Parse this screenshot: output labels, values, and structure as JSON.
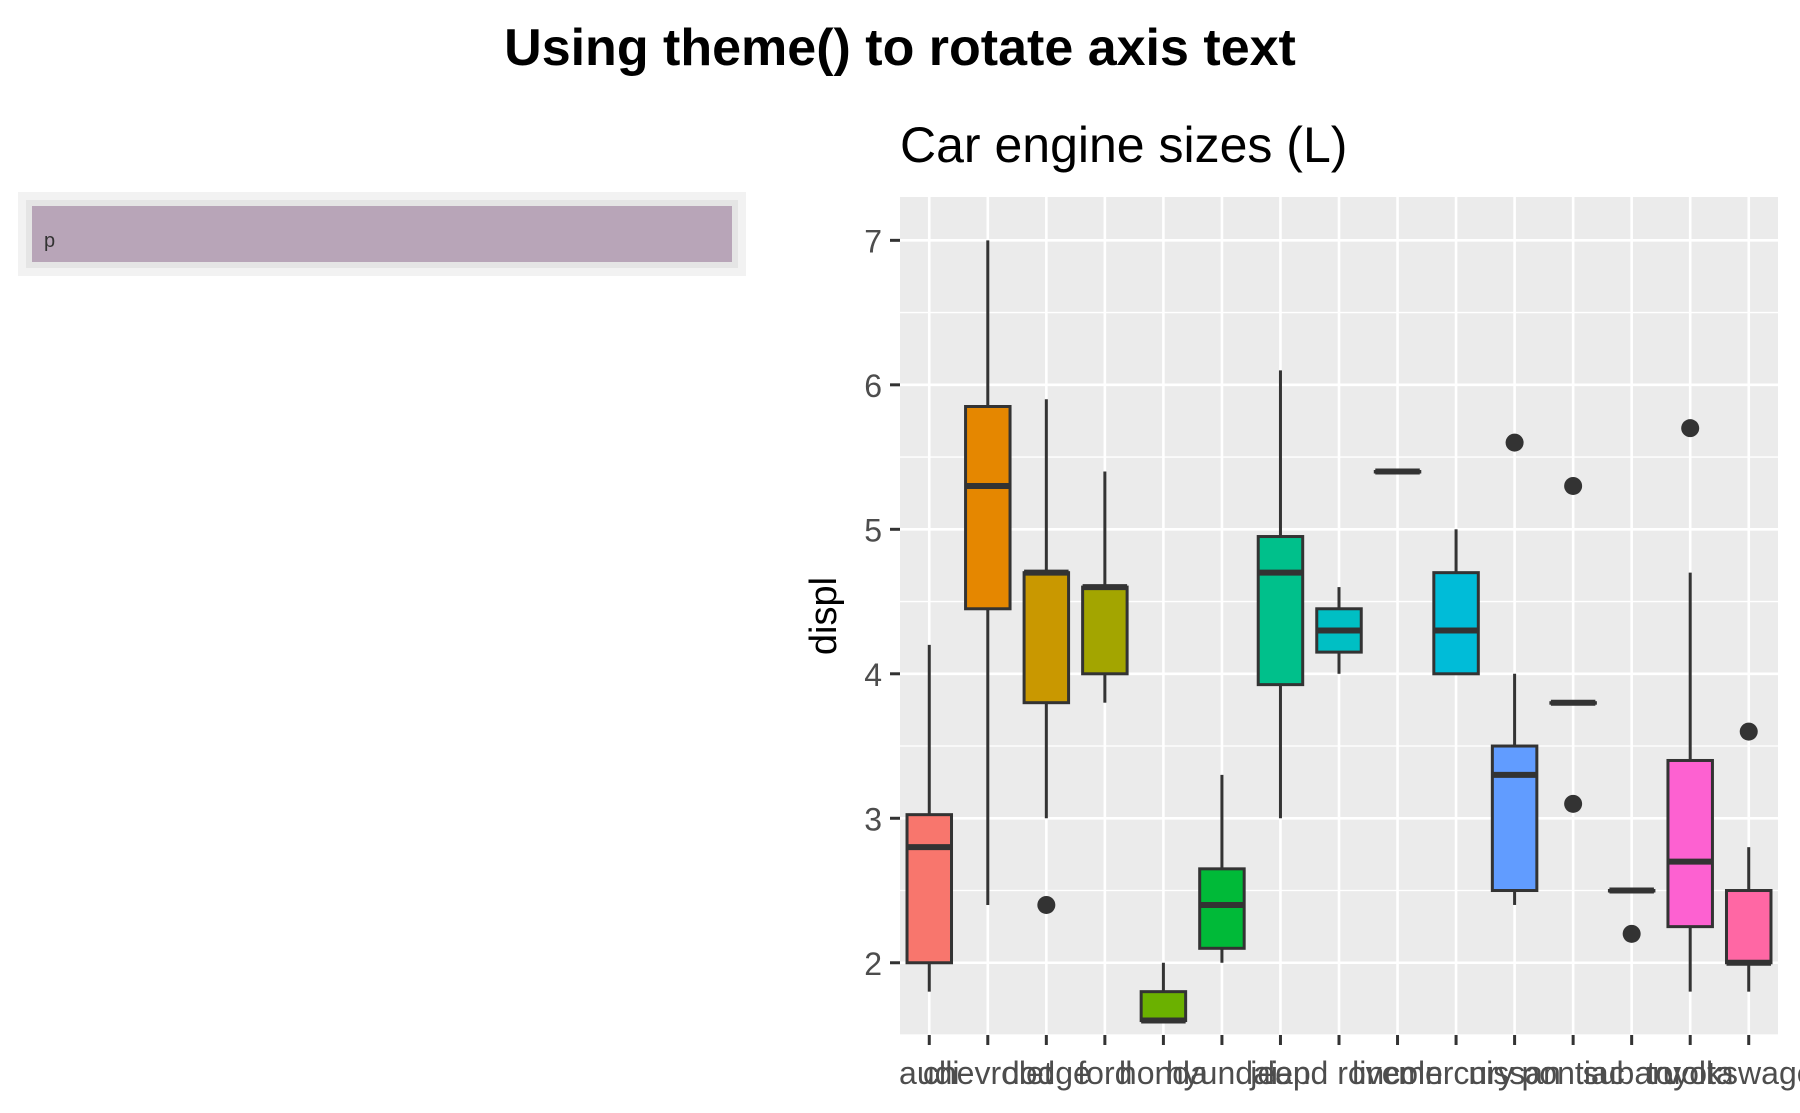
{
  "page_title": "Using theme() to rotate axis text",
  "left_panel": {
    "label": "p",
    "fill": "#b8a5b8"
  },
  "chart_data": {
    "type": "box",
    "title": "Car engine sizes (L)",
    "xlabel": "",
    "ylabel": "displ",
    "ylim": [
      1.5,
      7.3
    ],
    "yticks": [
      2,
      3,
      4,
      5,
      6,
      7
    ],
    "grid": true,
    "legend": "none",
    "categories": [
      "audi",
      "chevrolet",
      "dodge",
      "ford",
      "honda",
      "hyundai",
      "jeep",
      "land rover",
      "lincoln",
      "mercury",
      "nissan",
      "pontiac",
      "subaru",
      "toyota",
      "volkswagen"
    ],
    "colors": [
      "#F8766D",
      "#E58700",
      "#C99800",
      "#A3A500",
      "#6BB100",
      "#00BA38",
      "#00C08B",
      "#00BFC4",
      "#00B0F6",
      "#00BCD8",
      "#619CFF",
      "#B983FF",
      "#E76BF3",
      "#FD61D1",
      "#FF67A4"
    ],
    "boxes": [
      {
        "lower_whisker": 1.8,
        "q1": 2.0,
        "median": 2.8,
        "q3": 3.025,
        "upper_whisker": 4.2,
        "outliers": []
      },
      {
        "lower_whisker": 2.4,
        "q1": 4.45,
        "median": 5.3,
        "q3": 5.85,
        "upper_whisker": 7.0,
        "outliers": []
      },
      {
        "lower_whisker": 3.0,
        "q1": 3.8,
        "median": 4.7,
        "q3": 4.7,
        "upper_whisker": 5.9,
        "outliers": [
          2.4
        ]
      },
      {
        "lower_whisker": 3.8,
        "q1": 4.0,
        "median": 4.6,
        "q3": 4.6,
        "upper_whisker": 5.4,
        "outliers": []
      },
      {
        "lower_whisker": 1.6,
        "q1": 1.6,
        "median": 1.6,
        "q3": 1.8,
        "upper_whisker": 2.0,
        "outliers": []
      },
      {
        "lower_whisker": 2.0,
        "q1": 2.1,
        "median": 2.4,
        "q3": 2.65,
        "upper_whisker": 3.3,
        "outliers": []
      },
      {
        "lower_whisker": 3.0,
        "q1": 3.925,
        "median": 4.7,
        "q3": 4.95,
        "upper_whisker": 6.1,
        "outliers": []
      },
      {
        "lower_whisker": 4.0,
        "q1": 4.15,
        "median": 4.3,
        "q3": 4.45,
        "upper_whisker": 4.6,
        "outliers": []
      },
      {
        "lower_whisker": 5.4,
        "q1": 5.4,
        "median": 5.4,
        "q3": 5.4,
        "upper_whisker": 5.4,
        "outliers": []
      },
      {
        "lower_whisker": 4.0,
        "q1": 4.0,
        "median": 4.3,
        "q3": 4.7,
        "upper_whisker": 5.0,
        "outliers": []
      },
      {
        "lower_whisker": 2.4,
        "q1": 2.5,
        "median": 3.3,
        "q3": 3.5,
        "upper_whisker": 4.0,
        "outliers": [
          5.6
        ]
      },
      {
        "lower_whisker": 3.8,
        "q1": 3.8,
        "median": 3.8,
        "q3": 3.8,
        "upper_whisker": 3.8,
        "outliers": [
          3.1,
          5.3
        ]
      },
      {
        "lower_whisker": 2.5,
        "q1": 2.5,
        "median": 2.5,
        "q3": 2.5,
        "upper_whisker": 2.5,
        "outliers": [
          2.2
        ]
      },
      {
        "lower_whisker": 1.8,
        "q1": 2.25,
        "median": 2.7,
        "q3": 3.4,
        "upper_whisker": 4.7,
        "outliers": [
          5.7
        ]
      },
      {
        "lower_whisker": 1.8,
        "q1": 2.0,
        "median": 2.0,
        "q3": 2.5,
        "upper_whisker": 2.8,
        "outliers": [
          3.6
        ]
      }
    ]
  }
}
